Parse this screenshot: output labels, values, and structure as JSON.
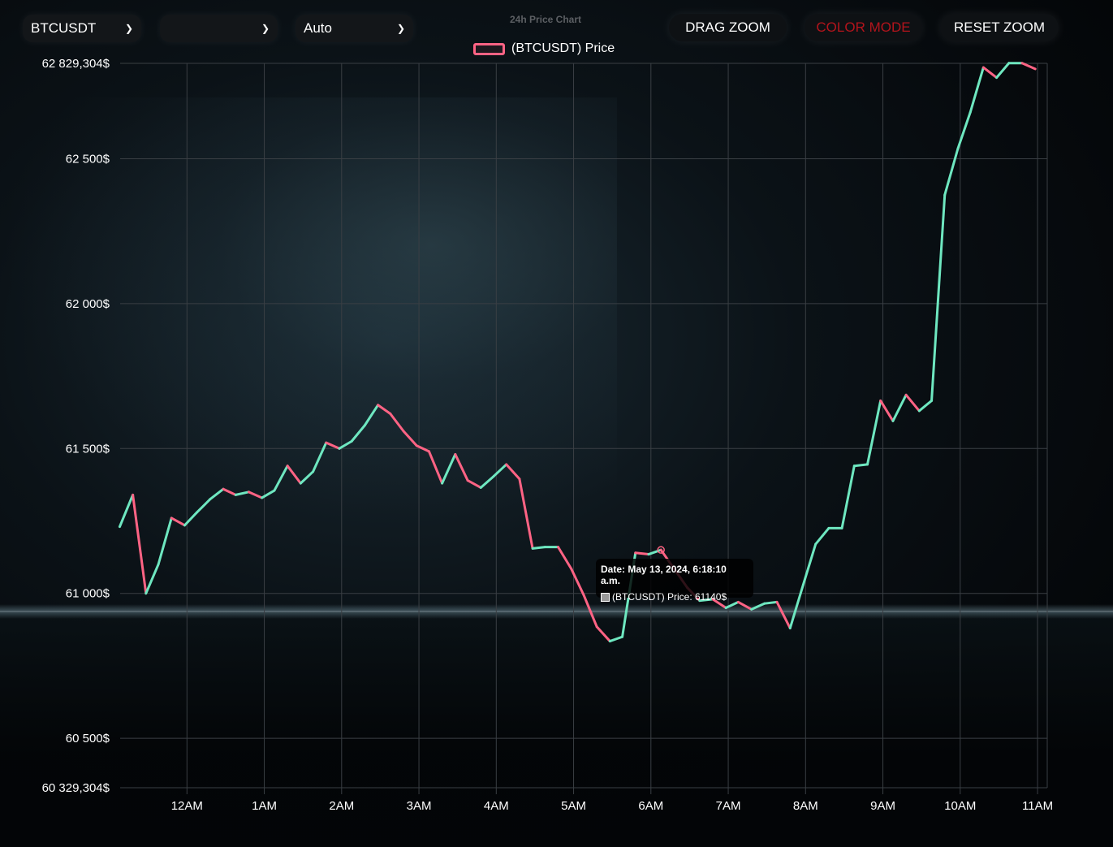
{
  "controls": {
    "symbol_select": "BTCUSDT",
    "second_select": "",
    "interval_select": "Auto",
    "drag_zoom_label": "DRAG ZOOM",
    "color_mode_label": "COLOR MODE",
    "reset_zoom_label": "RESET ZOOM",
    "color_mode_color": "#b3141c"
  },
  "colors": {
    "up_line": "#6ee7c0",
    "down_line": "#ff6384",
    "grid": "#3a3f44"
  },
  "tooltip": {
    "title": "Date: May 13, 2024, 6:18:10 a.m.",
    "body": "(BTCUSDT) Price: 61140$"
  },
  "chart_data": {
    "type": "line",
    "title": "24h Price Chart",
    "legend": "(BTCUSDT) Price",
    "legend_position": "top",
    "grid": true,
    "ylim": [
      60329.304,
      62829.304
    ],
    "y_ticks": [
      60329.304,
      60500,
      61000,
      61500,
      62000,
      62500,
      62829.304
    ],
    "y_tick_labels": [
      "60 329,304$",
      "60 500$",
      "61 000$",
      "61 500$",
      "62 000$",
      "62 500$",
      "62 829,304$"
    ],
    "x_ticks": [
      0,
      1,
      2,
      3,
      4,
      5,
      6,
      7,
      8,
      9,
      10,
      11
    ],
    "x_tick_labels": [
      "12AM",
      "1AM",
      "2AM",
      "3AM",
      "4AM",
      "5AM",
      "6AM",
      "7AM",
      "8AM",
      "9AM",
      "10AM",
      "11AM"
    ],
    "xlim": [
      -0.87,
      11.0
    ],
    "series": [
      {
        "name": "(BTCUSDT) Price",
        "x": [
          -0.87,
          -0.7,
          -0.53,
          -0.37,
          -0.2,
          -0.03,
          0.13,
          0.3,
          0.47,
          0.63,
          0.8,
          0.97,
          1.13,
          1.3,
          1.47,
          1.63,
          1.8,
          1.97,
          2.13,
          2.3,
          2.47,
          2.63,
          2.8,
          2.97,
          3.13,
          3.3,
          3.47,
          3.63,
          3.8,
          3.97,
          4.13,
          4.3,
          4.47,
          4.63,
          4.8,
          4.97,
          5.13,
          5.3,
          5.47,
          5.63,
          5.8,
          5.97,
          6.13,
          6.3,
          6.47,
          6.63,
          6.8,
          6.97,
          7.13,
          7.3,
          7.47,
          7.63,
          7.8,
          7.97,
          8.13,
          8.3,
          8.47,
          8.63,
          8.8,
          8.97,
          9.13,
          9.3,
          9.47,
          9.63,
          9.8,
          9.97,
          10.13,
          10.3,
          10.47,
          10.63,
          10.8,
          10.97
        ],
        "y": [
          61230,
          61340,
          61000,
          61100,
          61260,
          61235,
          61280,
          61325,
          61360,
          61340,
          61350,
          61330,
          61355,
          61440,
          61380,
          61420,
          61520,
          61500,
          61525,
          61580,
          61650,
          61620,
          61560,
          61510,
          61490,
          61380,
          61480,
          61390,
          61365,
          61405,
          61445,
          61395,
          61155,
          61160,
          61160,
          61085,
          60995,
          60885,
          60835,
          60850,
          61140,
          61135,
          61150,
          61085,
          61020,
          60975,
          60980,
          60950,
          60970,
          60945,
          60965,
          60970,
          60880,
          61030,
          61170,
          61225,
          61225,
          61440,
          61445,
          61665,
          61595,
          61685,
          61630,
          61665,
          62375,
          62535,
          62660,
          62815,
          62780,
          62830,
          62830,
          62810
        ]
      }
    ]
  }
}
